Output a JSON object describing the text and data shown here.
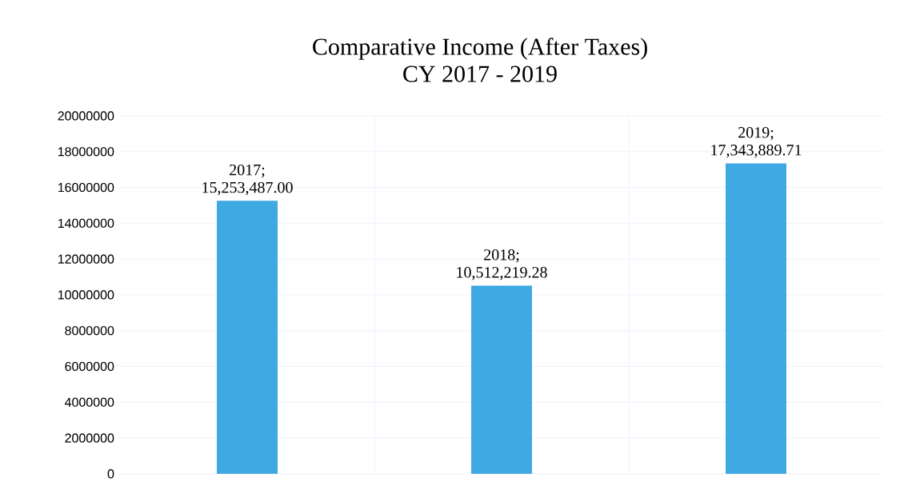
{
  "chart_data": {
    "type": "bar",
    "title": "Comparative Income (After Taxes)",
    "subtitle": "CY 2017 - 2019",
    "categories": [
      null,
      null,
      null
    ],
    "values": [
      15253487.0,
      10512219.28,
      17343889.71
    ],
    "value_labels": [
      "2017; 15,253,487.00",
      "2018; 10,512,219.28",
      "2019; 17,343,889.71"
    ],
    "color": "#3fa9e3",
    "ylim": [
      0,
      20000000
    ],
    "yticks": [
      0,
      2000000,
      4000000,
      6000000,
      8000000,
      10000000,
      12000000,
      14000000,
      16000000,
      18000000,
      20000000
    ],
    "grid": true
  }
}
